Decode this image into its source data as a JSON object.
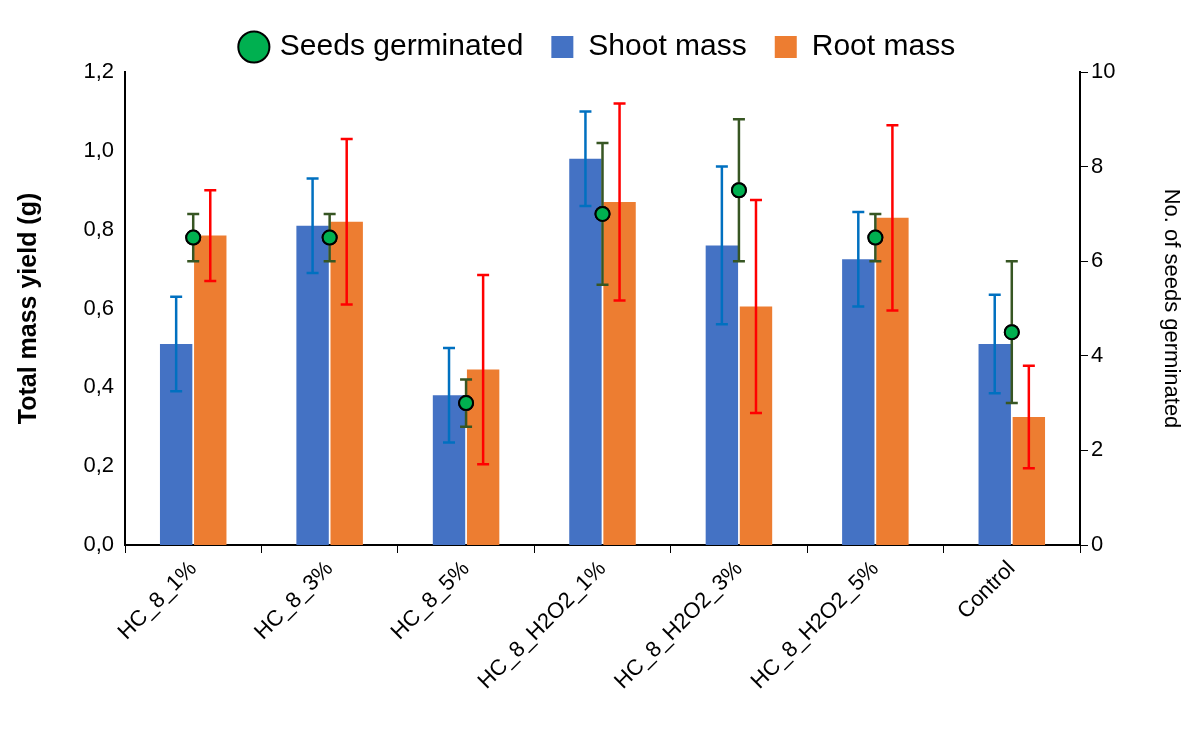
{
  "chart_data": {
    "type": "bar",
    "ylabel": "Total mass yield (g)",
    "y2label": "No. of seeds germinated",
    "categories": [
      "HC_8_1%",
      "HC_8_3%",
      "HC_8_5%",
      "HC_8_H2O2_1%",
      "HC_8_H2O2_3%",
      "HC_8_H2O2_5%",
      "Control"
    ],
    "series": [
      {
        "name": "Shoot mass",
        "color": "#4472c4",
        "values": [
          0.51,
          0.81,
          0.38,
          0.98,
          0.76,
          0.725,
          0.51
        ],
        "errors": [
          0.12,
          0.12,
          0.12,
          0.12,
          0.2,
          0.12,
          0.125
        ]
      },
      {
        "name": "Root mass",
        "color": "#ed7d31",
        "values": [
          0.785,
          0.82,
          0.445,
          0.87,
          0.605,
          0.83,
          0.325
        ],
        "errors": [
          0.115,
          0.21,
          0.24,
          0.25,
          0.27,
          0.235,
          0.13
        ]
      },
      {
        "name": "Seeds germinated",
        "type": "scatter",
        "axis": "y2",
        "color": "#00b050",
        "x": [
          "HC_8_1%",
          "HC_8_3%",
          "HC_8_5%",
          "HC_8_H2O2_1%",
          "HC_8_H2O2_3%",
          "HC_8_H2O2_5%",
          "Control"
        ],
        "values": [
          6.5,
          6.5,
          3,
          7,
          7.5,
          6.5,
          4.5
        ],
        "errors": [
          0.5,
          0.5,
          0.5,
          1.5,
          1.5,
          0.5,
          1.5
        ]
      }
    ],
    "ylim": [
      0,
      1.2
    ],
    "yticks": [
      {
        "value": 0,
        "label": "0,0"
      },
      {
        "value": 0.2,
        "label": "0,2"
      },
      {
        "value": 0.4,
        "label": "0,4"
      },
      {
        "value": 0.6,
        "label": "0,6"
      },
      {
        "value": 0.8,
        "label": "0,8"
      },
      {
        "value": 1,
        "label": "1,0"
      },
      {
        "value": 1.2,
        "label": "1,2"
      }
    ],
    "y2lim": [
      0,
      10
    ],
    "y2ticks": [
      0,
      2,
      4,
      6,
      8,
      10
    ],
    "grid": false,
    "legend": "top",
    "marker": "circle"
  }
}
